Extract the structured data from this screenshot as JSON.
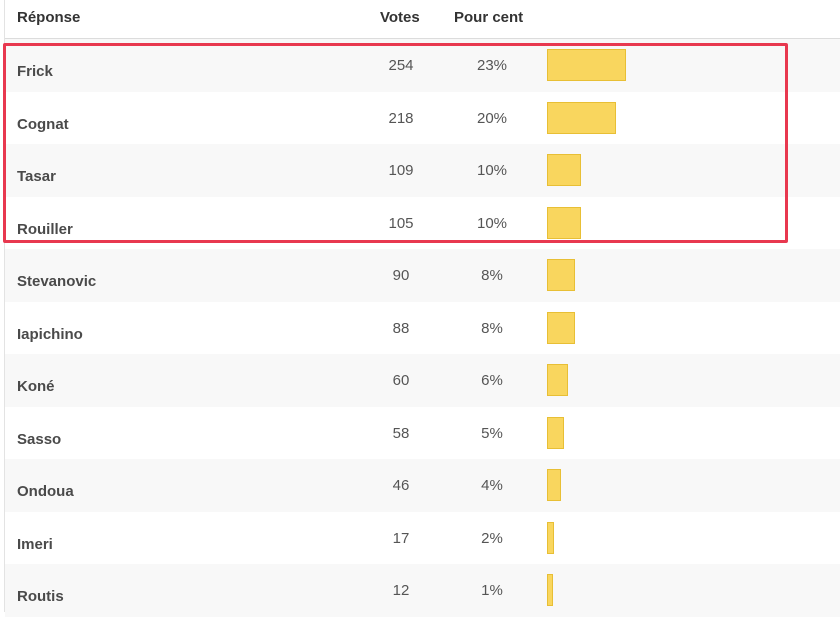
{
  "header": {
    "reponse": "Réponse",
    "votes": "Votes",
    "pour_cent": "Pour cent"
  },
  "rows": [
    {
      "name": "Frick",
      "votes": "254",
      "percent": "23%",
      "fraction": 0.23
    },
    {
      "name": "Cognat",
      "votes": "218",
      "percent": "20%",
      "fraction": 0.2
    },
    {
      "name": "Tasar",
      "votes": "109",
      "percent": "10%",
      "fraction": 0.1
    },
    {
      "name": "Rouiller",
      "votes": "105",
      "percent": "10%",
      "fraction": 0.1
    },
    {
      "name": "Stevanovic",
      "votes": "90",
      "percent": "8%",
      "fraction": 0.08
    },
    {
      "name": "Iapichino",
      "votes": "88",
      "percent": "8%",
      "fraction": 0.08
    },
    {
      "name": "Koné",
      "votes": "60",
      "percent": "6%",
      "fraction": 0.06
    },
    {
      "name": "Sasso",
      "votes": "58",
      "percent": "5%",
      "fraction": 0.05
    },
    {
      "name": "Ondoua",
      "votes": "46",
      "percent": "4%",
      "fraction": 0.04
    },
    {
      "name": "Imeri",
      "votes": "17",
      "percent": "2%",
      "fraction": 0.02
    },
    {
      "name": "Routis",
      "votes": "12",
      "percent": "1%",
      "fraction": 0.01
    }
  ],
  "colors": {
    "bar": "#f9d65e",
    "highlight": "#e8384f"
  }
}
